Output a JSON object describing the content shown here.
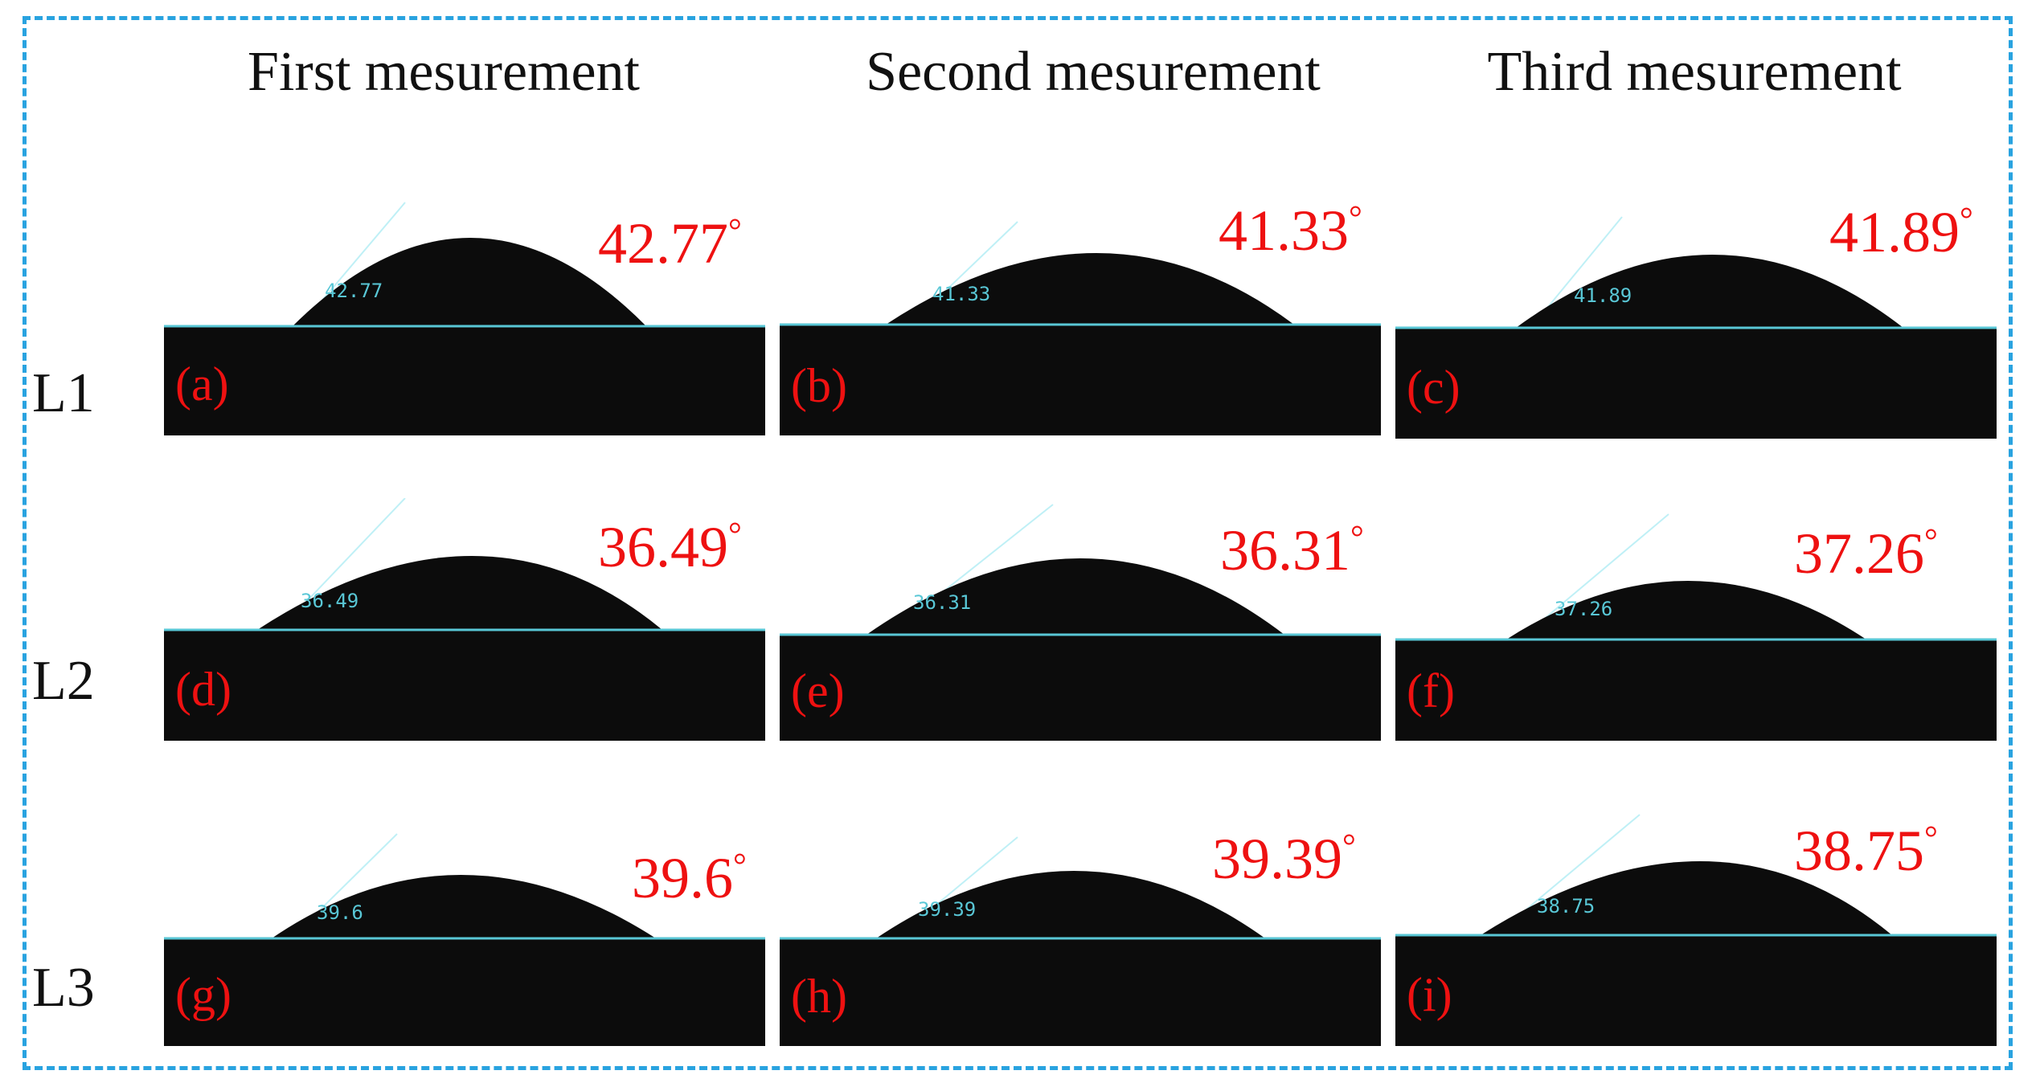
{
  "columns": [
    "First mesurement",
    "Second mesurement",
    "Third mesurement"
  ],
  "rows": [
    "L1",
    "L2",
    "L3"
  ],
  "panels": [
    {
      "letter": "(a)",
      "angle": "42.77",
      "overlay": "42.77"
    },
    {
      "letter": "(b)",
      "angle": "41.33",
      "overlay": "41.33"
    },
    {
      "letter": "(c)",
      "angle": "41.89",
      "overlay": "41.89"
    },
    {
      "letter": "(d)",
      "angle": "36.49",
      "overlay": "36.49"
    },
    {
      "letter": "(e)",
      "angle": "36.31",
      "overlay": "36.31"
    },
    {
      "letter": "(f)",
      "angle": "37.26",
      "overlay": "37.26"
    },
    {
      "letter": "(g)",
      "angle": "39.6",
      "overlay": "39.6"
    },
    {
      "letter": "(h)",
      "angle": "39.39",
      "overlay": "39.39"
    },
    {
      "letter": "(i)",
      "angle": "38.75",
      "overlay": "38.75"
    }
  ],
  "degree_symbol": "°",
  "colors": {
    "frame": "#29a3e0",
    "annotation": "#ee1111",
    "baseline": "#59c7d6"
  }
}
